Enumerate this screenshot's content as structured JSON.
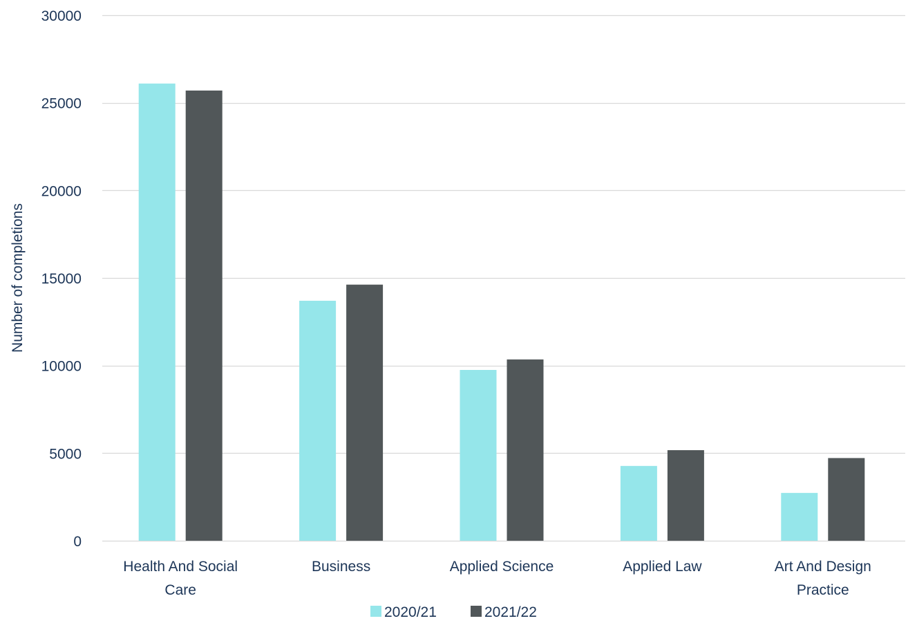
{
  "chart_data": {
    "type": "bar",
    "title": "",
    "xlabel": "",
    "ylabel": "Number of completions",
    "ylim": [
      0,
      30000
    ],
    "yticks": [
      0,
      5000,
      10000,
      15000,
      20000,
      25000,
      30000
    ],
    "grid": true,
    "legend_position": "bottom-center",
    "categories": [
      [
        "Health And Social",
        "Care"
      ],
      [
        "Business"
      ],
      [
        "Applied Science"
      ],
      [
        "Applied Law"
      ],
      [
        "Art And Design",
        "Practice"
      ]
    ],
    "series": [
      {
        "name": "2020/21",
        "color": "#95e6ea",
        "values": [
          26100,
          13700,
          9750,
          4270,
          2730
        ]
      },
      {
        "name": "2021/22",
        "color": "#515759",
        "values": [
          25700,
          14620,
          10350,
          5170,
          4720
        ]
      }
    ]
  },
  "colors": {
    "text": "#1c3557",
    "gridline": "#d9d9d9"
  }
}
